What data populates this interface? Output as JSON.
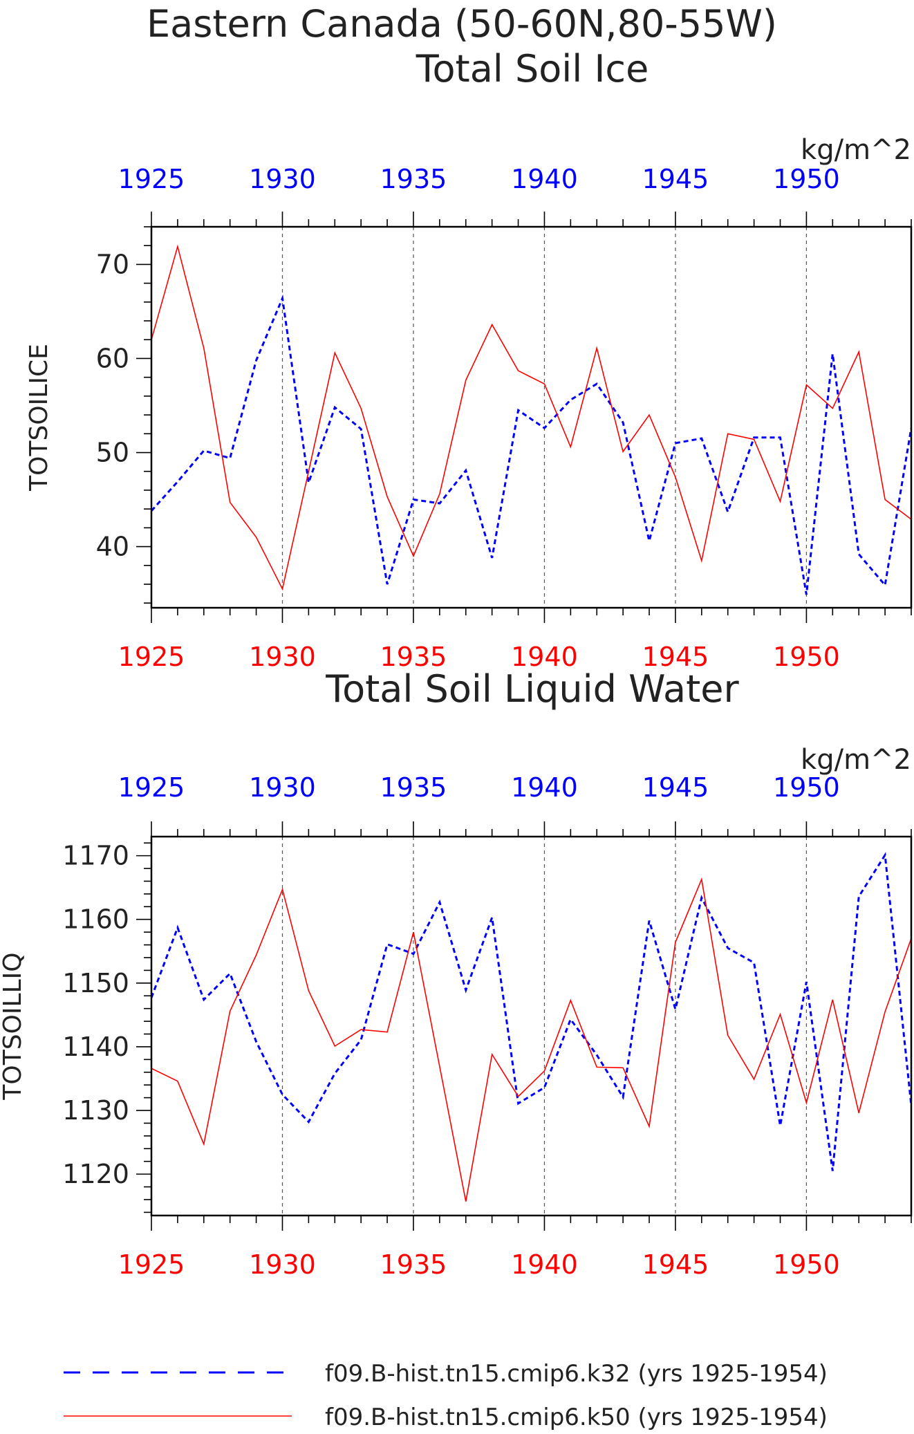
{
  "header": {
    "title": "Eastern Canada (50-60N,80-55W)"
  },
  "legend": {
    "position": "bottom",
    "items": [
      {
        "label": "f09.B-hist.tn15.cmip6.k32 (yrs 1925-1954)",
        "color": "#0000ff",
        "style": "dashed"
      },
      {
        "label": "f09.B-hist.tn15.cmip6.k50 (yrs 1925-1954)",
        "color": "#ff0000",
        "style": "solid"
      }
    ]
  },
  "chart_data": [
    {
      "type": "line",
      "title": "Total Soil Ice",
      "ylabel": "TOTSOILICE",
      "units": "kg/m^2",
      "xlim": [
        1925,
        1954
      ],
      "ylim": [
        33.5,
        74
      ],
      "yticks": [
        40,
        50,
        60,
        70
      ],
      "yminor": 2,
      "xticks": [
        1925,
        1930,
        1935,
        1940,
        1945,
        1950
      ],
      "grid": "vertical dashed at major x ticks",
      "x": [
        1925,
        1926,
        1927,
        1928,
        1929,
        1930,
        1931,
        1932,
        1933,
        1934,
        1935,
        1936,
        1937,
        1938,
        1939,
        1940,
        1941,
        1942,
        1943,
        1944,
        1945,
        1946,
        1947,
        1948,
        1949,
        1950,
        1951,
        1952,
        1953,
        1954
      ],
      "series": [
        {
          "name": "f09.B-hist.tn15.cmip6.k32 (yrs 1925-1954)",
          "color": "#0000ff",
          "dashed": true,
          "values": [
            43.8,
            46.9,
            50.2,
            49.4,
            59.8,
            66.4,
            46.8,
            54.8,
            52.5,
            36.0,
            45.0,
            44.6,
            48.1,
            38.8,
            54.5,
            52.6,
            55.6,
            57.3,
            53.2,
            40.6,
            51.0,
            51.5,
            43.7,
            51.6,
            51.6,
            34.9,
            60.5,
            39.2,
            35.9,
            52.6
          ]
        },
        {
          "name": "f09.B-hist.tn15.cmip6.k50 (yrs 1925-1954)",
          "color": "#ff0000",
          "dashed": false,
          "values": [
            62.0,
            71.9,
            61.1,
            44.7,
            41.0,
            35.5,
            48.0,
            60.6,
            54.7,
            45.3,
            39.0,
            45.6,
            57.7,
            63.6,
            58.7,
            57.3,
            50.6,
            61.1,
            50.1,
            54.0,
            47.4,
            38.5,
            52.0,
            51.4,
            44.8,
            57.2,
            54.7,
            60.7,
            45.0,
            42.9
          ]
        }
      ]
    },
    {
      "type": "line",
      "title": "Total Soil Liquid Water",
      "ylabel": "TOTSOILLIQ",
      "units": "kg/m^2",
      "xlim": [
        1925,
        1954
      ],
      "ylim": [
        1113.5,
        1173
      ],
      "yticks": [
        1120,
        1130,
        1140,
        1150,
        1160,
        1170
      ],
      "yminor": 2,
      "xticks": [
        1925,
        1930,
        1935,
        1940,
        1945,
        1950
      ],
      "grid": "vertical dashed at major x ticks",
      "x": [
        1925,
        1926,
        1927,
        1928,
        1929,
        1930,
        1931,
        1932,
        1933,
        1934,
        1935,
        1936,
        1937,
        1938,
        1939,
        1940,
        1941,
        1942,
        1943,
        1944,
        1945,
        1946,
        1947,
        1948,
        1949,
        1950,
        1951,
        1952,
        1953,
        1954
      ],
      "series": [
        {
          "name": "f09.B-hist.tn15.cmip6.k32 (yrs 1925-1954)",
          "color": "#0000ff",
          "dashed": true,
          "values": [
            1147.7,
            1158.7,
            1147.4,
            1151.5,
            1140.8,
            1132.5,
            1128.2,
            1135.8,
            1141.1,
            1156.1,
            1154.6,
            1162.7,
            1148.9,
            1160.3,
            1131.1,
            1133.6,
            1144.3,
            1138.7,
            1132.1,
            1159.8,
            1145.9,
            1163.4,
            1155.5,
            1153.2,
            1127.6,
            1150.2,
            1120.5,
            1163.6,
            1170.1,
            1130.8
          ]
        },
        {
          "name": "f09.B-hist.tn15.cmip6.k50 (yrs 1925-1954)",
          "color": "#ff0000",
          "dashed": false,
          "values": [
            1136.6,
            1134.6,
            1124.7,
            1145.6,
            1154.4,
            1164.7,
            1148.8,
            1140.1,
            1142.7,
            1142.3,
            1158.0,
            1136.9,
            1115.7,
            1138.8,
            1132.2,
            1136.2,
            1147.3,
            1136.8,
            1136.7,
            1127.5,
            1156.4,
            1166.3,
            1141.8,
            1134.9,
            1145.1,
            1131.2,
            1147.4,
            1129.6,
            1145.5,
            1157.0
          ]
        }
      ]
    }
  ]
}
